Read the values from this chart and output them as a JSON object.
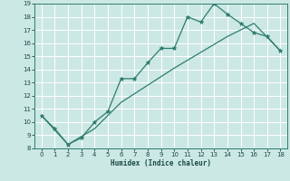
{
  "xlabel": "Humidex (Indice chaleur)",
  "x_line1": [
    0,
    1,
    2,
    3,
    4,
    5,
    6,
    7,
    8,
    9,
    10,
    11,
    12,
    13,
    14,
    15,
    16,
    17,
    18
  ],
  "y_line1": [
    10.5,
    9.5,
    8.3,
    8.8,
    10.0,
    10.8,
    13.3,
    13.3,
    14.5,
    15.6,
    15.6,
    18.0,
    17.6,
    19.0,
    18.2,
    17.5,
    16.8,
    16.5,
    15.4
  ],
  "x_line2": [
    0,
    2,
    4,
    6,
    8,
    10,
    12,
    14,
    16,
    18
  ],
  "y_line2": [
    10.5,
    8.3,
    9.5,
    11.5,
    12.8,
    14.1,
    15.3,
    16.5,
    17.5,
    15.4
  ],
  "line_color": "#2E7D6E",
  "bg_color": "#cce8e4",
  "grid_color": "#b0d4d0",
  "ylim": [
    8,
    19
  ],
  "xlim": [
    -0.5,
    18.5
  ],
  "yticks": [
    8,
    9,
    10,
    11,
    12,
    13,
    14,
    15,
    16,
    17,
    18,
    19
  ],
  "xticks": [
    0,
    1,
    2,
    3,
    4,
    5,
    6,
    7,
    8,
    9,
    10,
    11,
    12,
    13,
    14,
    15,
    16,
    17,
    18
  ]
}
